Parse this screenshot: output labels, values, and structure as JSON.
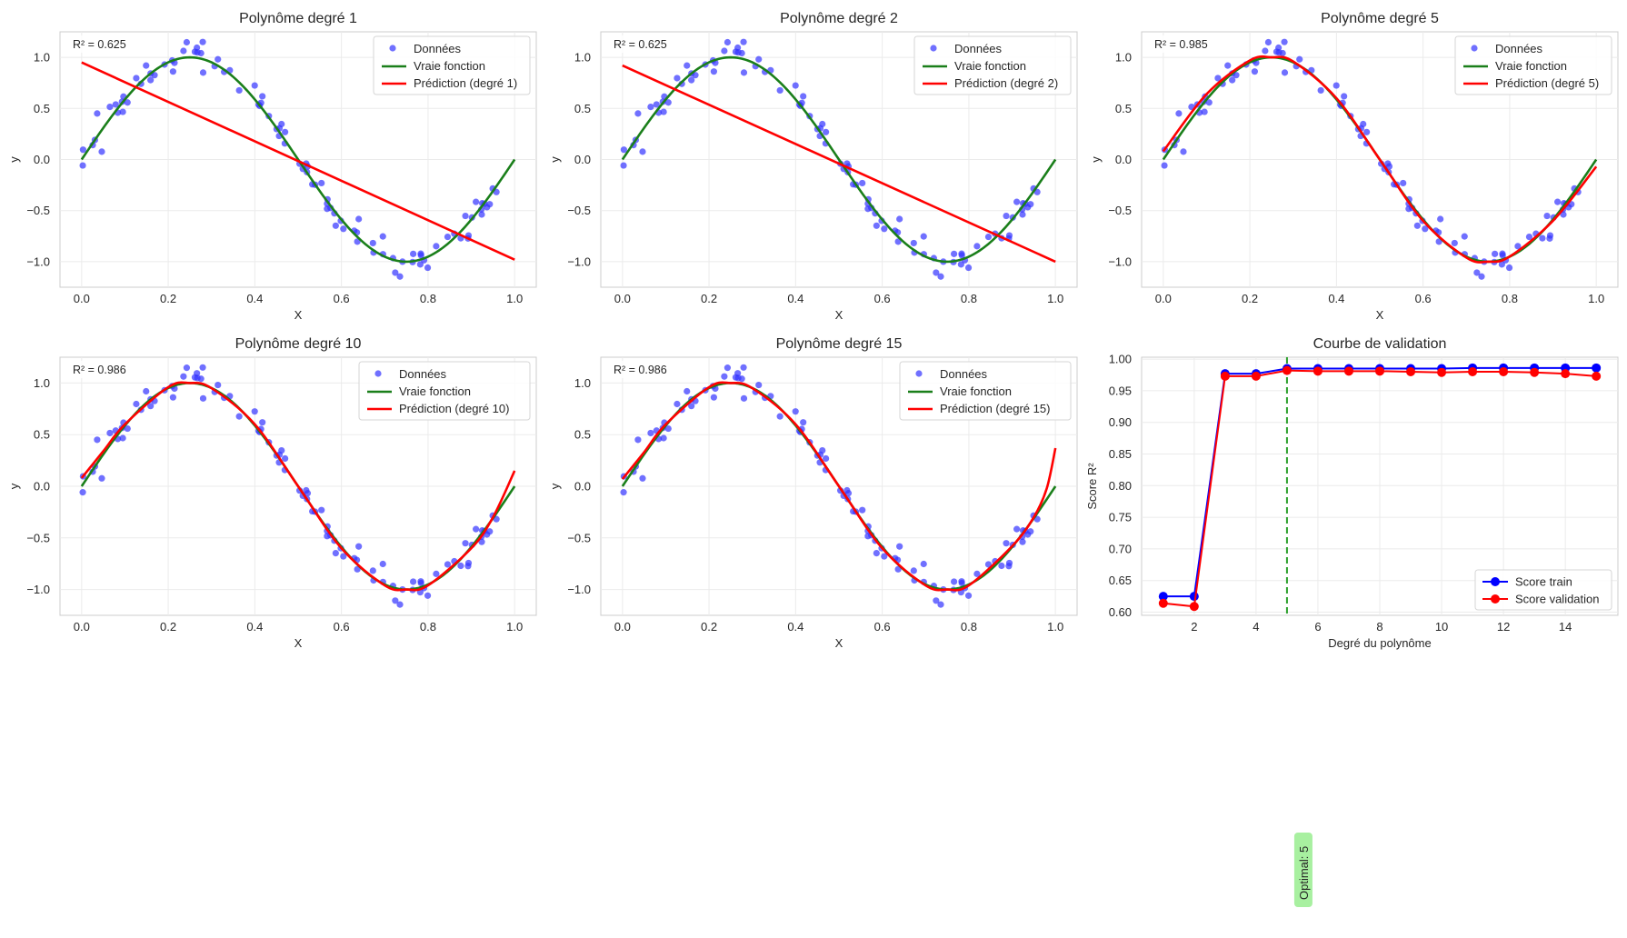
{
  "colors": {
    "data_points": "#3333ff",
    "true_function": "#1a7f1a",
    "prediction": "#ff0000",
    "train": "#0000ff",
    "validation": "#ff0000",
    "optimal_line": "#2ca02c",
    "annotation_box": "#a8f0a0",
    "grid": "#ebebeb",
    "frame": "#cccccc"
  },
  "chart_data": [
    {
      "type": "scatter",
      "title": "Polynôme degré 1",
      "xlabel": "X",
      "ylabel": "y",
      "xlim": [
        -0.05,
        1.05
      ],
      "ylim": [
        -1.25,
        1.25
      ],
      "xticks": [
        "0.0",
        "0.2",
        "0.4",
        "0.6",
        "0.8",
        "1.0"
      ],
      "yticks": [
        "−1.0",
        "−0.5",
        "0.0",
        "0.5",
        "1.0"
      ],
      "r2_label": "R² = 0.625",
      "legend": [
        "Données",
        "Vraie fonction",
        "Prédiction (degré 1)"
      ],
      "legend_position": "top-right",
      "grid": true,
      "degree": 1,
      "prediction": {
        "x": [
          0,
          1
        ],
        "y": [
          0.95,
          -0.98
        ]
      }
    },
    {
      "type": "scatter",
      "title": "Polynôme degré 2",
      "xlabel": "X",
      "ylabel": "y",
      "xlim": [
        -0.05,
        1.05
      ],
      "ylim": [
        -1.25,
        1.25
      ],
      "xticks": [
        "0.0",
        "0.2",
        "0.4",
        "0.6",
        "0.8",
        "1.0"
      ],
      "yticks": [
        "−1.0",
        "−0.5",
        "0.0",
        "0.5",
        "1.0"
      ],
      "r2_label": "R² = 0.625",
      "legend": [
        "Données",
        "Vraie fonction",
        "Prédiction (degré 2)"
      ],
      "legend_position": "top-right",
      "grid": true,
      "degree": 2,
      "prediction": {
        "x": [
          0,
          1
        ],
        "y": [
          0.92,
          -1.0
        ]
      }
    },
    {
      "type": "scatter",
      "title": "Polynôme degré 5",
      "xlabel": "X",
      "ylabel": "y",
      "xlim": [
        -0.05,
        1.05
      ],
      "ylim": [
        -1.25,
        1.25
      ],
      "xticks": [
        "0.0",
        "0.2",
        "0.4",
        "0.6",
        "0.8",
        "1.0"
      ],
      "yticks": [
        "−1.0",
        "−0.5",
        "0.0",
        "0.5",
        "1.0"
      ],
      "r2_label": "R² = 0.985",
      "legend": [
        "Données",
        "Vraie fonction",
        "Prédiction (degré 5)"
      ],
      "legend_position": "top-right",
      "grid": true,
      "degree": 5,
      "prediction": {
        "x": [
          0,
          0.1,
          0.2,
          0.25,
          0.3,
          0.4,
          0.5,
          0.6,
          0.7,
          0.75,
          0.8,
          0.9,
          1.0
        ],
        "y": [
          0.08,
          0.64,
          0.97,
          1.0,
          0.96,
          0.6,
          0.0,
          -0.6,
          -0.96,
          -1.0,
          -0.95,
          -0.6,
          -0.07
        ]
      }
    },
    {
      "type": "scatter",
      "title": "Polynôme degré 10",
      "xlabel": "X",
      "ylabel": "y",
      "xlim": [
        -0.05,
        1.05
      ],
      "ylim": [
        -1.25,
        1.25
      ],
      "xticks": [
        "0.0",
        "0.2",
        "0.4",
        "0.6",
        "0.8",
        "1.0"
      ],
      "yticks": [
        "−1.0",
        "−0.5",
        "0.0",
        "0.5",
        "1.0"
      ],
      "r2_label": "R² = 0.986",
      "legend": [
        "Données",
        "Vraie fonction",
        "Prédiction (degré 10)"
      ],
      "legend_position": "top-right",
      "grid": true,
      "degree": 10,
      "prediction": {
        "x": [
          0,
          0.05,
          0.1,
          0.2,
          0.25,
          0.3,
          0.4,
          0.5,
          0.6,
          0.7,
          0.75,
          0.8,
          0.9,
          0.95,
          1.0
        ],
        "y": [
          0.08,
          0.34,
          0.6,
          0.96,
          1.0,
          0.95,
          0.6,
          0.0,
          -0.6,
          -0.96,
          -1.0,
          -0.96,
          -0.6,
          -0.3,
          0.15
        ]
      }
    },
    {
      "type": "scatter",
      "title": "Polynôme degré 15",
      "xlabel": "X",
      "ylabel": "y",
      "xlim": [
        -0.05,
        1.05
      ],
      "ylim": [
        -1.25,
        1.25
      ],
      "xticks": [
        "0.0",
        "0.2",
        "0.4",
        "0.6",
        "0.8",
        "1.0"
      ],
      "yticks": [
        "−1.0",
        "−0.5",
        "0.0",
        "0.5",
        "1.0"
      ],
      "r2_label": "R² = 0.986",
      "legend": [
        "Données",
        "Vraie fonction",
        "Prédiction (degré 15)"
      ],
      "legend_position": "top-right",
      "grid": true,
      "degree": 15,
      "prediction": {
        "x": [
          0,
          0.05,
          0.1,
          0.2,
          0.25,
          0.3,
          0.4,
          0.5,
          0.6,
          0.7,
          0.75,
          0.8,
          0.9,
          0.95,
          0.98,
          1.0
        ],
        "y": [
          0.07,
          0.33,
          0.6,
          0.96,
          1.0,
          0.95,
          0.6,
          0.0,
          -0.6,
          -0.96,
          -1.0,
          -0.96,
          -0.58,
          -0.3,
          -0.02,
          0.37
        ]
      }
    },
    {
      "type": "line",
      "title": "Courbe de validation",
      "xlabel": "Degré du polynôme",
      "ylabel": "Score R²",
      "xlim": [
        0.3,
        15.7
      ],
      "ylim": [
        0.595,
        1.003
      ],
      "xticks": [
        "2",
        "4",
        "6",
        "8",
        "10",
        "12",
        "14"
      ],
      "yticks": [
        "0.60",
        "0.65",
        "0.70",
        "0.75",
        "0.80",
        "0.85",
        "0.90",
        "0.95",
        "1.00"
      ],
      "legend_position": "bottom-right",
      "grid": true,
      "x": [
        1,
        2,
        3,
        4,
        5,
        6,
        7,
        8,
        9,
        10,
        11,
        12,
        13,
        14,
        15
      ],
      "series": [
        {
          "name": "Score train",
          "values": [
            0.625,
            0.625,
            0.977,
            0.977,
            0.985,
            0.985,
            0.985,
            0.985,
            0.985,
            0.985,
            0.986,
            0.986,
            0.986,
            0.986,
            0.986
          ]
        },
        {
          "name": "Score validation",
          "values": [
            0.614,
            0.609,
            0.973,
            0.973,
            0.982,
            0.981,
            0.981,
            0.981,
            0.98,
            0.979,
            0.98,
            0.98,
            0.979,
            0.977,
            0.973
          ]
        }
      ],
      "optimal_degree": 5,
      "annotation": "Optimal: 5"
    }
  ]
}
